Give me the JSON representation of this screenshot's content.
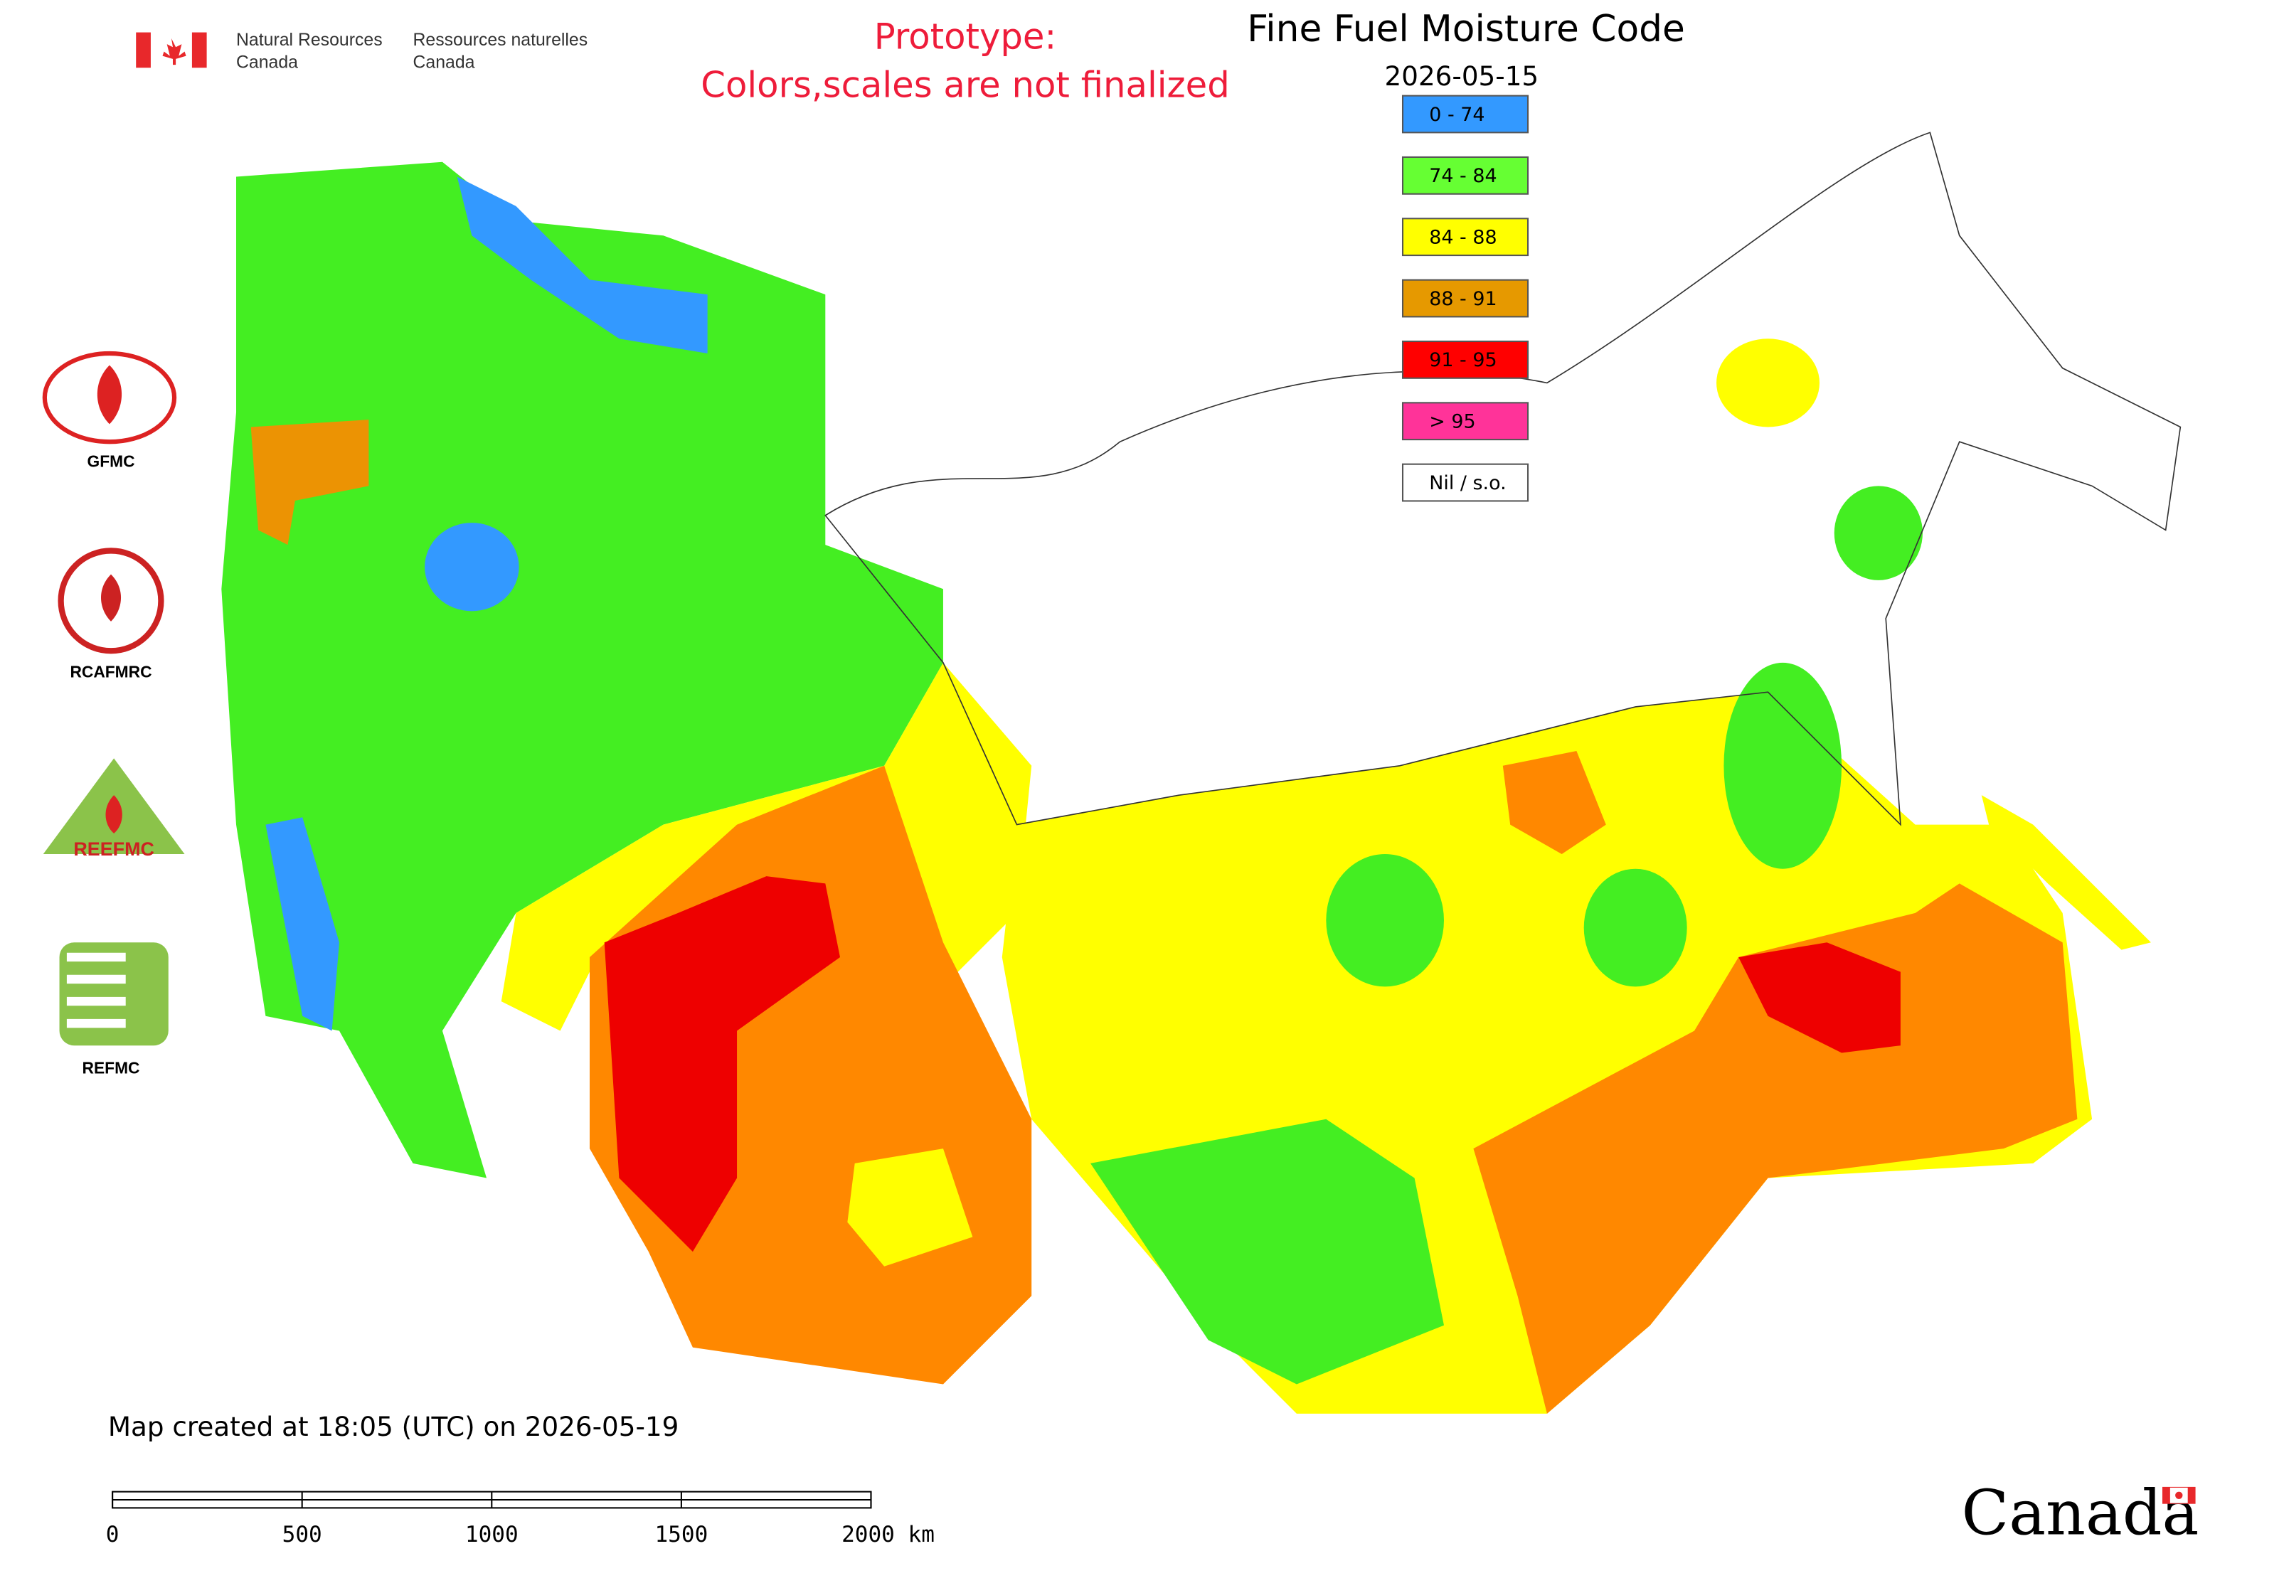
{
  "header": {
    "en_line1": "Natural Resources",
    "en_line2": "Canada",
    "fr_line1": "Ressources naturelles",
    "fr_line2": "Canada"
  },
  "notice": [
    "Prototype:",
    "Colors,scales are not finalized"
  ],
  "title": "Fine Fuel Moisture Code",
  "date": "2026-05-15",
  "legend": [
    {
      "label": "0 - 74",
      "color": "#3399ff"
    },
    {
      "label": "74 - 84",
      "color": "#66ff33"
    },
    {
      "label": "84 - 88",
      "color": "#ffff00"
    },
    {
      "label": "88 - 91",
      "color": "#e69900"
    },
    {
      "label": "91 - 95",
      "color": "#ff0000"
    },
    {
      "label": "> 95",
      "color": "#ff3399"
    },
    {
      "label": "Nil / s.o.",
      "color": "#ffffff"
    }
  ],
  "logos": [
    "GFMC",
    "RCAFMRC",
    "REEFMC",
    "REFMC"
  ],
  "footer": "Map created at 18:05 (UTC) on 2026-05-19",
  "scale": {
    "range": [
      0,
      2000
    ],
    "ticks": [
      0,
      500,
      1000,
      1500,
      {
        "value": 2000,
        "label": "2000 km"
      }
    ]
  },
  "wordmark": "Canada"
}
